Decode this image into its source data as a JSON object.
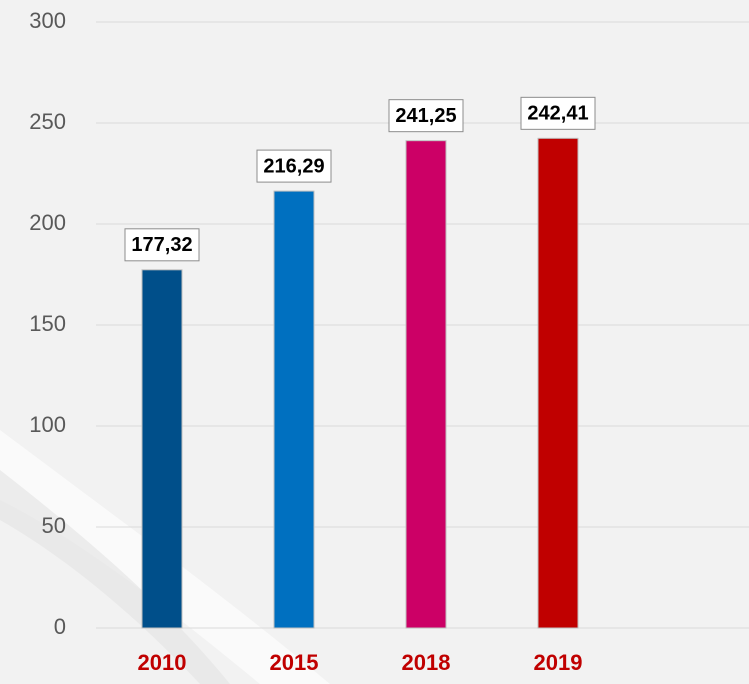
{
  "chart_data": {
    "type": "bar",
    "categories": [
      "2010",
      "2015",
      "2018",
      "2019"
    ],
    "values": [
      177.32,
      216.29,
      241.25,
      242.41
    ],
    "value_labels": [
      "177,32",
      "216,29",
      "241,25",
      "242,41"
    ],
    "colors": [
      "#004f8a",
      "#0070c0",
      "#cc0066",
      "#c00000"
    ],
    "category_label_color": "#c00000",
    "ylim": [
      0,
      300
    ],
    "yticks": [
      0,
      50,
      100,
      150,
      200,
      250,
      300
    ],
    "grid": true
  }
}
